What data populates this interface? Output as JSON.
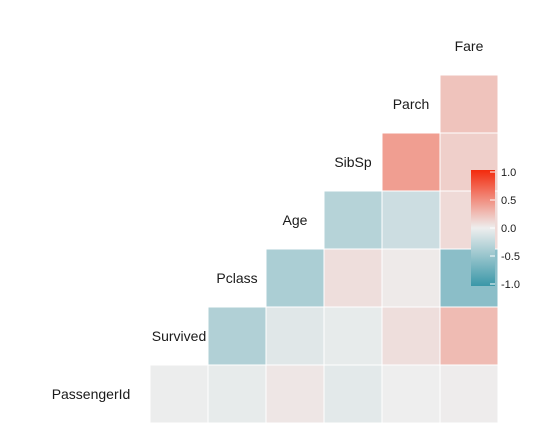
{
  "chart_data": {
    "type": "heatmap",
    "variables": [
      "PassengerId",
      "Survived",
      "Pclass",
      "Age",
      "SibSp",
      "Parch",
      "Fare"
    ],
    "layout": "lower-triangle",
    "cells": [
      {
        "row": "Survived",
        "col": "PassengerId",
        "value": -0.01
      },
      {
        "row": "Pclass",
        "col": "PassengerId",
        "value": -0.04
      },
      {
        "row": "Pclass",
        "col": "Survived",
        "value": -0.34
      },
      {
        "row": "Age",
        "col": "PassengerId",
        "value": 0.04
      },
      {
        "row": "Age",
        "col": "Survived",
        "value": -0.08
      },
      {
        "row": "Age",
        "col": "Pclass",
        "value": -0.37
      },
      {
        "row": "SibSp",
        "col": "PassengerId",
        "value": -0.06
      },
      {
        "row": "SibSp",
        "col": "Survived",
        "value": -0.04
      },
      {
        "row": "SibSp",
        "col": "Pclass",
        "value": 0.08
      },
      {
        "row": "SibSp",
        "col": "Age",
        "value": -0.31
      },
      {
        "row": "Parch",
        "col": "PassengerId",
        "value": -0.001
      },
      {
        "row": "Parch",
        "col": "Survived",
        "value": 0.08
      },
      {
        "row": "Parch",
        "col": "Pclass",
        "value": 0.02
      },
      {
        "row": "Parch",
        "col": "Age",
        "value": -0.19
      },
      {
        "row": "Parch",
        "col": "SibSp",
        "value": 0.41
      },
      {
        "row": "Fare",
        "col": "PassengerId",
        "value": 0.01
      },
      {
        "row": "Fare",
        "col": "Survived",
        "value": 0.26
      },
      {
        "row": "Fare",
        "col": "Pclass",
        "value": -0.55
      },
      {
        "row": "Fare",
        "col": "Age",
        "value": 0.1
      },
      {
        "row": "Fare",
        "col": "SibSp",
        "value": 0.16
      },
      {
        "row": "Fare",
        "col": "Parch",
        "value": 0.22
      }
    ],
    "legend": {
      "position": "right",
      "ticks": [
        1.0,
        0.5,
        0.0,
        -0.5,
        -1.0
      ],
      "tick_labels": [
        "1.0",
        "0.5",
        "0.0",
        "-0.5",
        "-1.0"
      ],
      "range": [
        -1.0,
        1.0
      ]
    },
    "colors": {
      "low": "#3A97A8",
      "mid": "#EEEEEE",
      "high": "#F32A0C",
      "cell_border": "#ffffff"
    }
  }
}
